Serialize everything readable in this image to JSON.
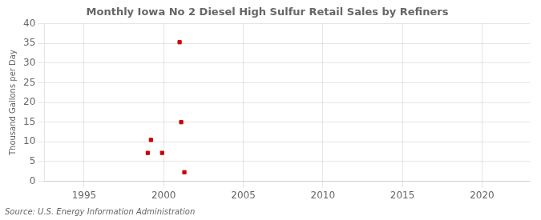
{
  "chart_data": {
    "type": "scatter",
    "title": "Monthly Iowa No 2 Diesel High Sulfur Retail Sales by Refiners",
    "ylabel": "Thousand Gallons per Day",
    "annotation": "Source: U.S. Energy Information Administration",
    "x": [
      1999.0,
      1999.2,
      1999.9,
      2001.0,
      2001.1,
      2001.3
    ],
    "values": [
      7.2,
      10.5,
      7.2,
      35.3,
      15.0,
      2.3
    ],
    "color": "#cc0000",
    "marker": "square",
    "xlim": [
      1992.5,
      2023
    ],
    "ylim": [
      0,
      40
    ],
    "xticks": [
      1995,
      2000,
      2005,
      2010,
      2015,
      2020
    ],
    "yticks": [
      0,
      5,
      10,
      15,
      20,
      25,
      30,
      35,
      40
    ],
    "grid": true
  }
}
